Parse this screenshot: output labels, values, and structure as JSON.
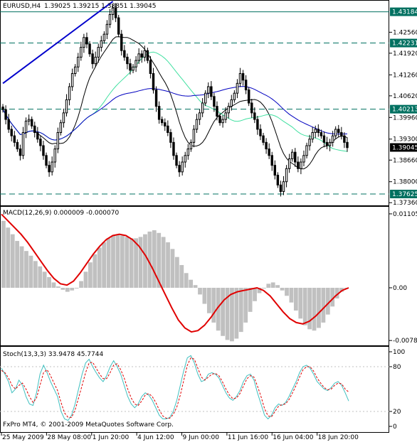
{
  "window": {
    "symbol_label": "EURUSD,H4",
    "ohlc_label": "1.39025 1.39215 1.38851 1.39045",
    "footer": "FxPro MT4, © 2001-2009 MetaQuotes Software Corp."
  },
  "colors": {
    "background": "#ffffff",
    "candle": "#000000",
    "trendline": "#0000cc",
    "hline": "#007060",
    "ma_fast": "#000000",
    "ma_mid": "#40e0a0",
    "ma_slow": "#0000c0",
    "macd_hist": "#c0c0c0",
    "macd_signal": "#e00000",
    "stoch_main": "#40c0c0",
    "stoch_signal": "#e00000",
    "axis_text": "#000000"
  },
  "chart_data": [
    {
      "type": "candlestick",
      "name": "price",
      "ylim": [
        1.373,
        1.435
      ],
      "y_ticks": [
        "1.42560",
        "1.41920",
        "1.41260",
        "1.40620",
        "1.39960",
        "1.39300",
        "1.38660",
        "1.38000",
        "1.37360"
      ],
      "x_ticks": [
        "25 May 2009",
        "28 May 08:00",
        "1 Jun 20:00",
        "4 Jun 12:00",
        "9 Jun 00:00",
        "11 Jun 16:00",
        "16 Jun 04:00",
        "18 Jun 20:00"
      ],
      "current_price": "1.39045",
      "horizontal_levels": [
        {
          "value": 1.43184,
          "label": "1.43184",
          "style": "solid"
        },
        {
          "value": 1.42231,
          "label": "1.42231",
          "style": "dashed"
        },
        {
          "value": 1.40213,
          "label": "1.40213",
          "style": "dashed"
        },
        {
          "value": 1.37625,
          "label": "1.37625",
          "style": "dashed"
        }
      ],
      "trendline": {
        "from": [
          0,
          1.41
        ],
        "to": [
          38,
          1.435
        ]
      },
      "close": [
        1.402,
        1.399,
        1.396,
        1.394,
        1.392,
        1.39,
        1.388,
        1.395,
        1.3985,
        1.399,
        1.397,
        1.395,
        1.393,
        1.391,
        1.388,
        1.385,
        1.383,
        1.386,
        1.39,
        1.395,
        1.398,
        1.401,
        1.405,
        1.409,
        1.413,
        1.415,
        1.418,
        1.421,
        1.424,
        1.422,
        1.419,
        1.416,
        1.418,
        1.421,
        1.423,
        1.425,
        1.428,
        1.431,
        1.433,
        1.43,
        1.425,
        1.42,
        1.418,
        1.416,
        1.414,
        1.415,
        1.417,
        1.419,
        1.418,
        1.42,
        1.417,
        1.413,
        1.408,
        1.403,
        1.399,
        1.398,
        1.397,
        1.395,
        1.392,
        1.388,
        1.385,
        1.383,
        1.386,
        1.388,
        1.39,
        1.392,
        1.396,
        1.399,
        1.401,
        1.404,
        1.407,
        1.409,
        1.406,
        1.403,
        1.4,
        1.398,
        1.399,
        1.401,
        1.403,
        1.405,
        1.407,
        1.41,
        1.413,
        1.411,
        1.408,
        1.404,
        1.401,
        1.399,
        1.396,
        1.394,
        1.392,
        1.39,
        1.388,
        1.385,
        1.382,
        1.379,
        1.377,
        1.38,
        1.384,
        1.387,
        1.389,
        1.386,
        1.384,
        1.386,
        1.388,
        1.391,
        1.393,
        1.395,
        1.396,
        1.395,
        1.394,
        1.392,
        1.391,
        1.392,
        1.394,
        1.396,
        1.395,
        1.394,
        1.392,
        1.3904
      ]
    },
    {
      "type": "bar",
      "name": "MACD",
      "label": "MACD(12,26,9) 0.000009 -0.000070",
      "ylim": [
        -0.0085,
        0.012
      ],
      "y_ticks": [
        "0.01105",
        "0.00",
        "-0.00788"
      ],
      "histogram": [
        0.01,
        0.009,
        0.008,
        0.007,
        0.0062,
        0.0055,
        0.0048,
        0.004,
        0.0032,
        0.0024,
        0.0016,
        0.0008,
        0.0002,
        -0.0003,
        -0.0006,
        -0.0004,
        0.0,
        0.001,
        0.0024,
        0.0038,
        0.005,
        0.006,
        0.0068,
        0.0074,
        0.0078,
        0.008,
        0.0078,
        0.0076,
        0.0074,
        0.0074,
        0.0076,
        0.008,
        0.0084,
        0.0086,
        0.0082,
        0.0076,
        0.0068,
        0.0058,
        0.0046,
        0.0034,
        0.0022,
        0.0012,
        0.0004,
        -0.001,
        -0.0024,
        -0.0038,
        -0.0052,
        -0.0064,
        -0.0072,
        -0.0078,
        -0.008,
        -0.0076,
        -0.0066,
        -0.0052,
        -0.0036,
        -0.002,
        -0.0008,
        0.0,
        0.0006,
        0.0008,
        0.0004,
        -0.0004,
        -0.0012,
        -0.0022,
        -0.0034,
        -0.0046,
        -0.0056,
        -0.0062,
        -0.0064,
        -0.006,
        -0.0052,
        -0.004,
        -0.0028,
        -0.0016,
        -0.0006,
        0.0
      ],
      "signal": [
        0.011,
        0.01,
        0.009,
        0.008,
        0.0068,
        0.0054,
        0.004,
        0.0026,
        0.0014,
        0.0006,
        0.0004,
        0.001,
        0.0022,
        0.0036,
        0.005,
        0.0062,
        0.0072,
        0.0078,
        0.008,
        0.0078,
        0.0072,
        0.0062,
        0.0048,
        0.003,
        0.001,
        -0.001,
        -0.003,
        -0.0048,
        -0.006,
        -0.0066,
        -0.0064,
        -0.0056,
        -0.0044,
        -0.003,
        -0.0018,
        -0.001,
        -0.0006,
        -0.0004,
        -0.0002,
        0.0,
        -0.0004,
        -0.0012,
        -0.0024,
        -0.0036,
        -0.0046,
        -0.0052,
        -0.0054,
        -0.005,
        -0.0042,
        -0.0032,
        -0.0022,
        -0.0012,
        -0.0004,
        0.0
      ]
    },
    {
      "type": "line",
      "name": "Stochastic",
      "label": "Stoch(13,3,3) 33.9478 45.7744",
      "ylim": [
        0,
        100
      ],
      "y_ticks": [
        "100",
        "80",
        "20",
        "0"
      ],
      "main": [
        78,
        70,
        60,
        45,
        50,
        62,
        55,
        40,
        30,
        28,
        45,
        70,
        82,
        72,
        60,
        50,
        40,
        20,
        10,
        8,
        15,
        30,
        50,
        70,
        85,
        90,
        80,
        72,
        65,
        60,
        68,
        80,
        88,
        80,
        70,
        55,
        40,
        30,
        25,
        30,
        40,
        45,
        42,
        35,
        25,
        15,
        10,
        10,
        12,
        20,
        35,
        55,
        75,
        92,
        95,
        85,
        70,
        60,
        62,
        70,
        72,
        70,
        65,
        55,
        45,
        38,
        35,
        40,
        48,
        60,
        68,
        70,
        62,
        45,
        30,
        15,
        10,
        15,
        25,
        30,
        28,
        32,
        40,
        50,
        60,
        72,
        80,
        82,
        78,
        70,
        60,
        55,
        50,
        48,
        52,
        58,
        60,
        55,
        45,
        34
      ],
      "signal": [
        75,
        72,
        65,
        55,
        50,
        55,
        58,
        50,
        40,
        32,
        38,
        55,
        72,
        76,
        68,
        58,
        48,
        32,
        18,
        12,
        12,
        22,
        38,
        55,
        72,
        85,
        86,
        78,
        70,
        64,
        64,
        72,
        82,
        84,
        76,
        65,
        50,
        38,
        30,
        28,
        34,
        42,
        44,
        40,
        32,
        22,
        14,
        11,
        11,
        16,
        26,
        42,
        62,
        82,
        92,
        90,
        78,
        66,
        62,
        66,
        70,
        71,
        68,
        60,
        50,
        42,
        37,
        38,
        44,
        54,
        64,
        68,
        66,
        54,
        40,
        24,
        14,
        13,
        20,
        27,
        29,
        30,
        36,
        45,
        55,
        66,
        76,
        80,
        80,
        74,
        65,
        58,
        52,
        49,
        50,
        55,
        58,
        57,
        50,
        46
      ]
    }
  ]
}
